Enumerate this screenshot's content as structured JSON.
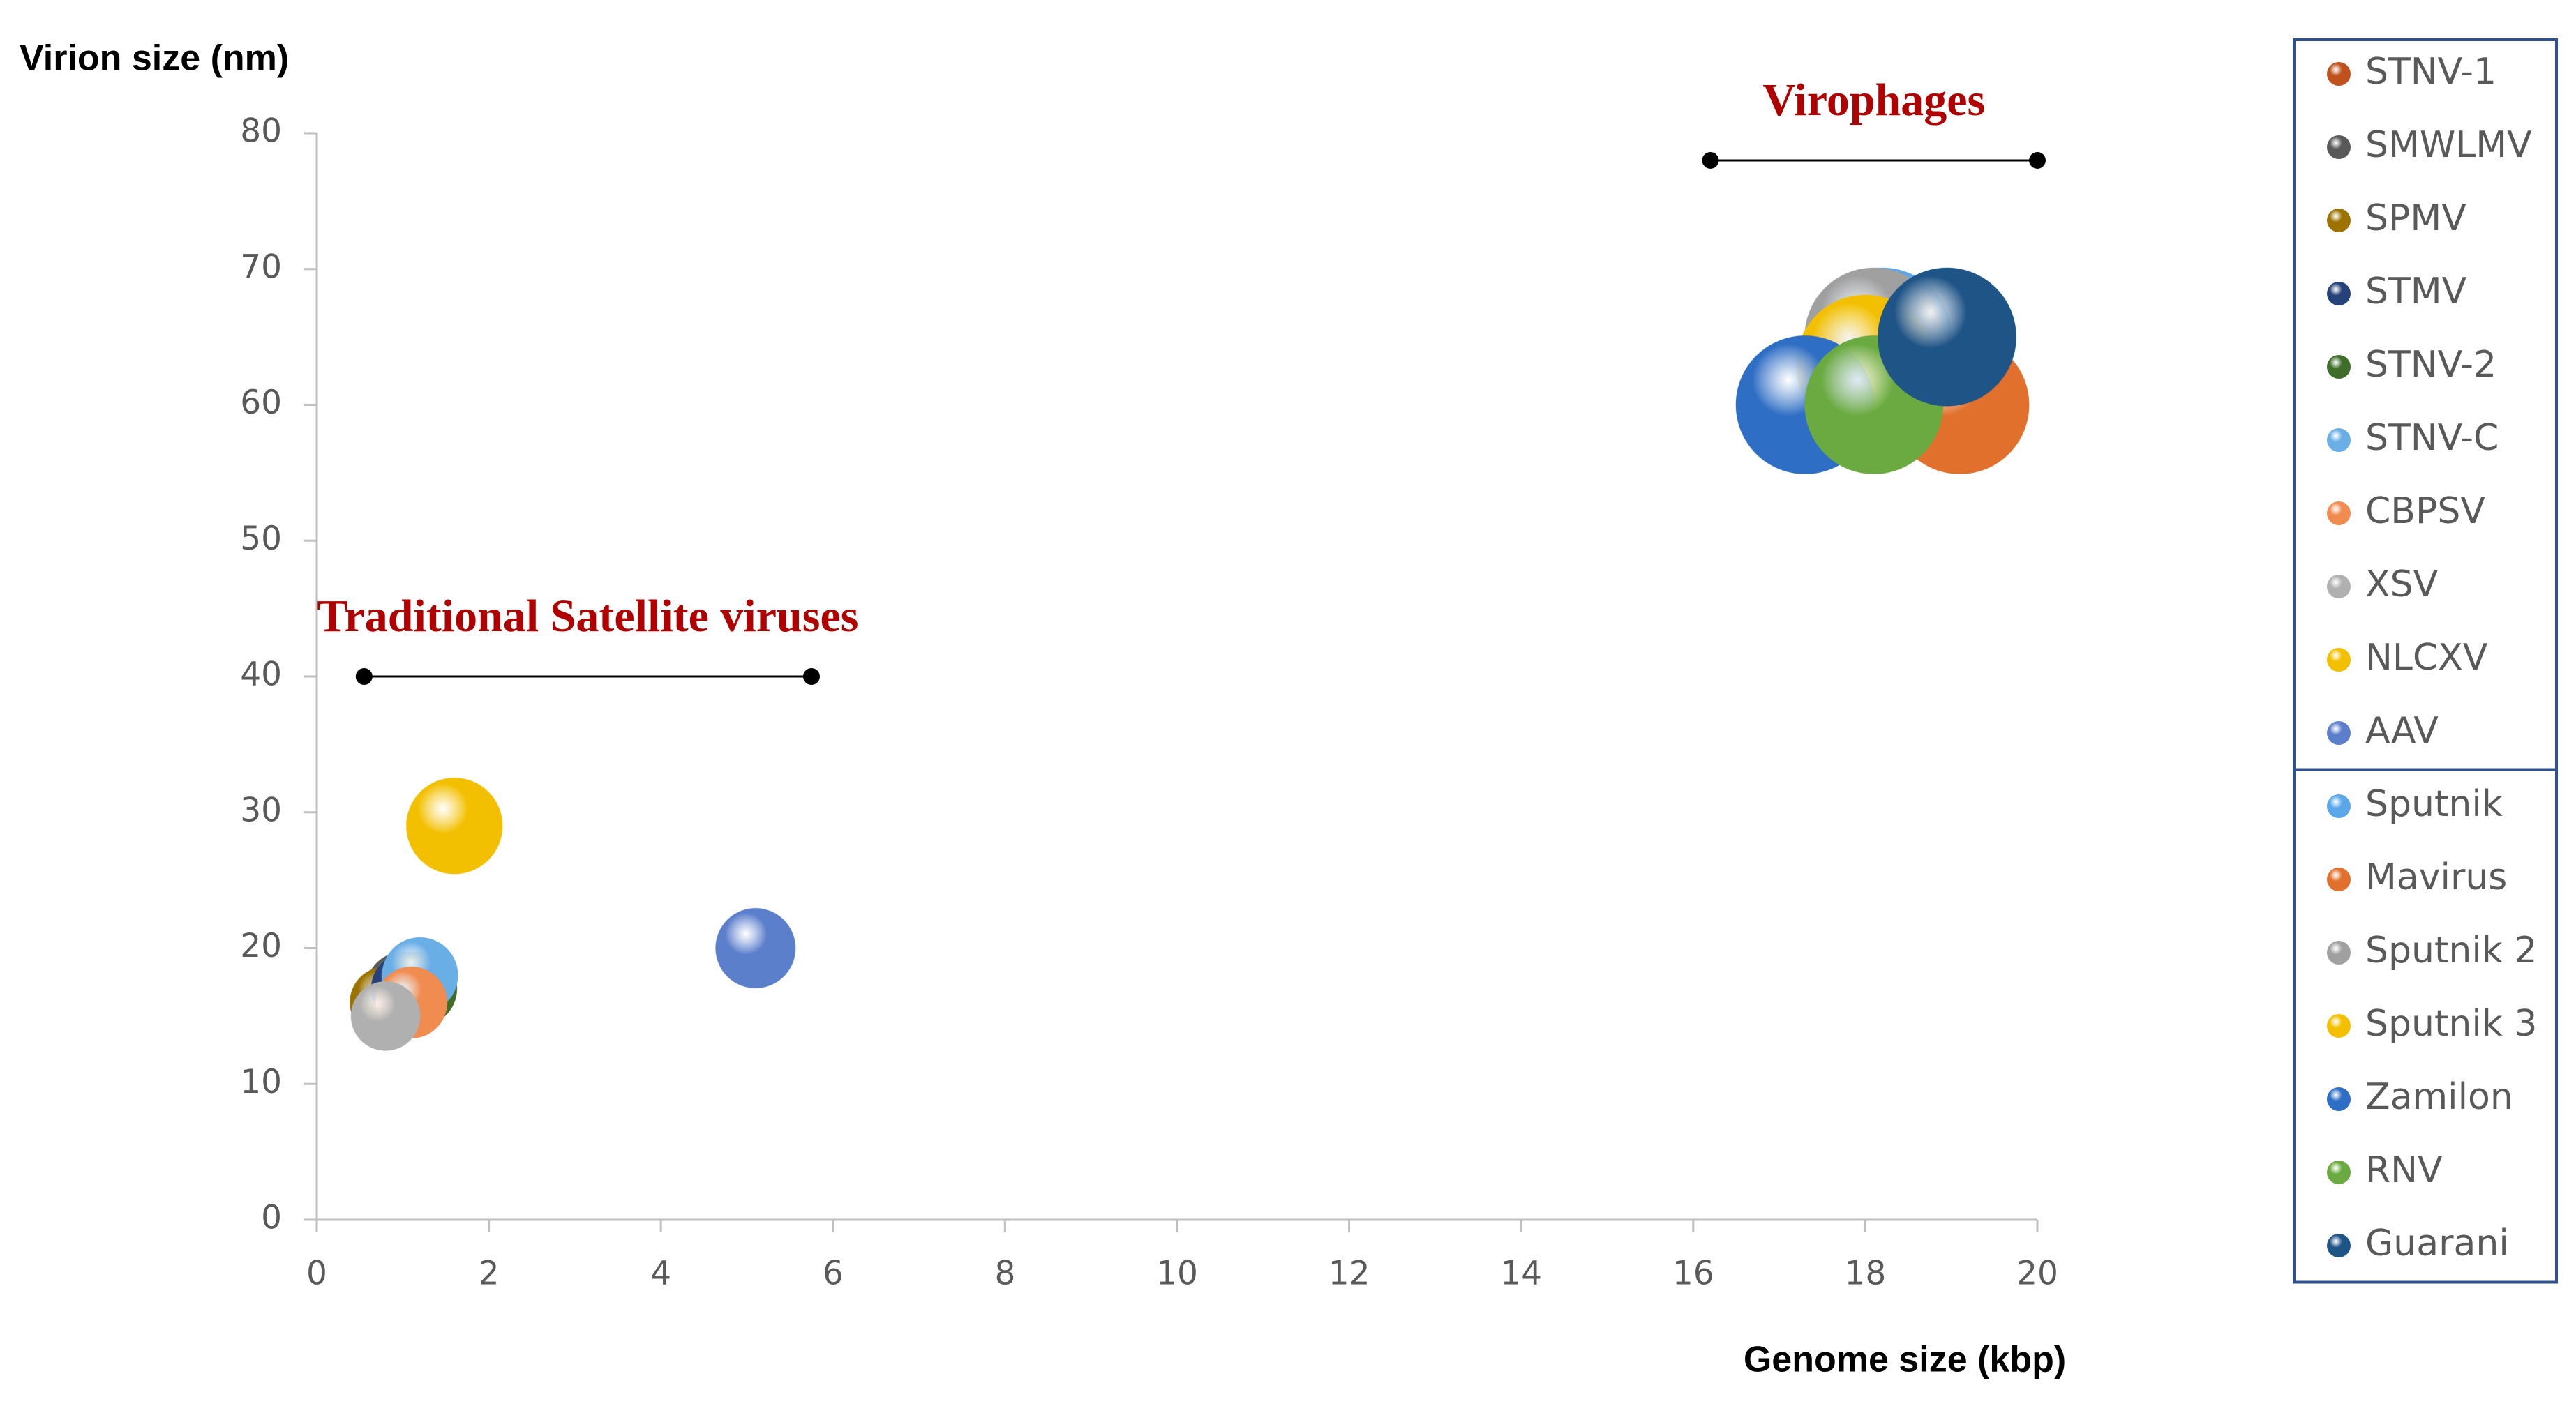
{
  "chart_data": {
    "type": "bubble",
    "y_title": "Virion size (nm)",
    "x_title": "Genome size (kbp)",
    "xlim": [
      0,
      20
    ],
    "xticks": [
      0,
      2,
      4,
      6,
      8,
      10,
      12,
      14,
      16,
      18,
      20
    ],
    "ylim": [
      0,
      80
    ],
    "yticks": [
      0,
      10,
      20,
      30,
      40,
      50,
      60,
      70,
      80
    ],
    "series": [
      {
        "name": "STNV-1",
        "color": "#c0501c",
        "x": [
          1.2
        ],
        "values": [
          17
        ],
        "sizes": [
          17
        ]
      },
      {
        "name": "SMWLMV",
        "color": "#595959",
        "x": [
          1.0
        ],
        "values": [
          17
        ],
        "sizes": [
          17
        ]
      },
      {
        "name": "SPMV",
        "color": "#9c7200",
        "x": [
          0.8
        ],
        "values": [
          16
        ],
        "sizes": [
          16
        ]
      },
      {
        "name": "STMV",
        "color": "#26427a",
        "x": [
          1.06
        ],
        "values": [
          17
        ],
        "sizes": [
          17
        ]
      },
      {
        "name": "STNV-2",
        "color": "#3f6e2a",
        "x": [
          1.2
        ],
        "values": [
          17
        ],
        "sizes": [
          17
        ]
      },
      {
        "name": "STNV-C",
        "color": "#6aaee6",
        "x": [
          1.2
        ],
        "values": [
          18
        ],
        "sizes": [
          18
        ]
      },
      {
        "name": "CBPSV",
        "color": "#f08c50",
        "x": [
          1.1
        ],
        "values": [
          16
        ],
        "sizes": [
          16
        ]
      },
      {
        "name": "XSV",
        "color": "#b0b0b0",
        "x": [
          0.8
        ],
        "values": [
          15
        ],
        "sizes": [
          15
        ]
      },
      {
        "name": "NLCXV",
        "color": "#f2c000",
        "x": [
          1.6
        ],
        "values": [
          29
        ],
        "sizes": [
          29
        ]
      },
      {
        "name": "AAV",
        "color": "#5c7fcc",
        "x": [
          5.1
        ],
        "values": [
          20
        ],
        "sizes": [
          20
        ]
      },
      {
        "name": "Sputnik",
        "color": "#5aa8ea",
        "x": [
          18.2
        ],
        "values": [
          65
        ],
        "sizes": [
          60
        ]
      },
      {
        "name": "Mavirus",
        "color": "#e0702c",
        "x": [
          19.1
        ],
        "values": [
          60
        ],
        "sizes": [
          60
        ]
      },
      {
        "name": "Sputnik 2",
        "color": "#a0a0a0",
        "x": [
          18.1
        ],
        "values": [
          65
        ],
        "sizes": [
          60
        ]
      },
      {
        "name": "Sputnik 3",
        "color": "#f2c000",
        "x": [
          18.0
        ],
        "values": [
          63
        ],
        "sizes": [
          60
        ]
      },
      {
        "name": "Zamilon",
        "color": "#2e6ec4",
        "x": [
          17.3
        ],
        "values": [
          60
        ],
        "sizes": [
          60
        ]
      },
      {
        "name": "RNV",
        "color": "#6aaa40",
        "x": [
          18.1
        ],
        "values": [
          60
        ],
        "sizes": [
          60
        ]
      },
      {
        "name": "Guarani",
        "color": "#1f5487",
        "x": [
          18.95
        ],
        "values": [
          65
        ],
        "sizes": [
          60
        ]
      }
    ],
    "annotations": [
      {
        "text": "Virophages",
        "x": [
          16.2,
          20
        ],
        "y": 78
      },
      {
        "text": "Traditional Satellite viruses",
        "x": [
          0.55,
          5.75
        ],
        "y": 40
      }
    ]
  }
}
